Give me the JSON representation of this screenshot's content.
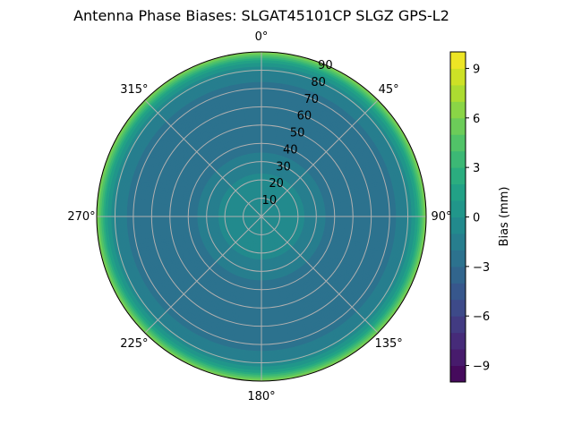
{
  "chart_data": {
    "type": "heatmap",
    "projection": "polar",
    "title": "Antenna Phase Biases: SLGAT45101CP    SLGZ GPS-L2",
    "theta_zero": "top",
    "theta_direction": "clockwise",
    "theta_ticks": [
      "0°",
      "45°",
      "90°",
      "135°",
      "180°",
      "225°",
      "270°",
      "315°"
    ],
    "theta_tick_values": [
      0,
      45,
      90,
      135,
      180,
      225,
      270,
      315
    ],
    "r_ticks": [
      "10",
      "20",
      "30",
      "40",
      "50",
      "60",
      "70",
      "80",
      "90"
    ],
    "r_tick_values": [
      10,
      20,
      30,
      40,
      50,
      60,
      70,
      80,
      90
    ],
    "rlim": [
      0,
      90
    ],
    "grid": true,
    "colormap": "viridis",
    "levels": [
      -10,
      -9,
      -8,
      -7,
      -6,
      -5,
      -4,
      -3,
      -2,
      -1,
      0,
      1,
      2,
      3,
      4,
      5,
      6,
      7,
      8,
      9,
      10
    ],
    "colorbar": {
      "label": "Bias (mm)",
      "ticks": [
        "−9",
        "−6",
        "−3",
        "0",
        "3",
        "6",
        "9"
      ],
      "tick_values": [
        -9,
        -6,
        -3,
        0,
        3,
        6,
        9
      ],
      "range": [
        -10,
        10
      ]
    },
    "radial_profile": [
      {
        "zenith": 0,
        "bias": -0.5
      },
      {
        "zenith": 15,
        "bias": -0.6
      },
      {
        "zenith": 22,
        "bias": -0.9
      },
      {
        "zenith": 28,
        "bias": -1.3
      },
      {
        "zenith": 34,
        "bias": -1.9
      },
      {
        "zenith": 40,
        "bias": -2.5
      },
      {
        "zenith": 60,
        "bias": -2.7
      },
      {
        "zenith": 70,
        "bias": -2.5
      },
      {
        "zenith": 75,
        "bias": -1.8
      },
      {
        "zenith": 80,
        "bias": -1.0
      },
      {
        "zenith": 83,
        "bias": 0.2
      },
      {
        "zenith": 85,
        "bias": 1.5
      },
      {
        "zenith": 87,
        "bias": 3.0
      },
      {
        "zenith": 88.5,
        "bias": 4.5
      },
      {
        "zenith": 90,
        "bias": 6.0
      }
    ]
  }
}
